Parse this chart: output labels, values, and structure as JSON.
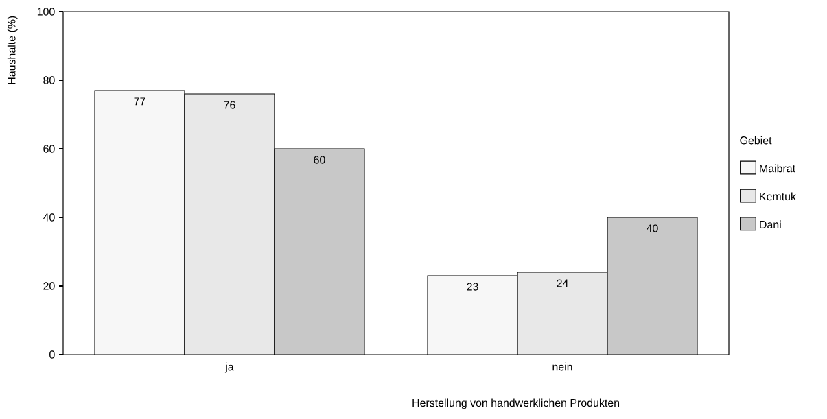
{
  "chart_data": {
    "type": "bar",
    "xlabel": "Herstellung von handwerklichen Produkten",
    "ylabel": "Haushalte (%)",
    "legend_title": "Gebiet",
    "categories": [
      "ja",
      "nein"
    ],
    "series": [
      {
        "name": "Maibrat",
        "color": "#f7f7f7",
        "values": [
          77,
          23
        ]
      },
      {
        "name": "Kemtuk",
        "color": "#e8e8e8",
        "values": [
          76,
          24
        ]
      },
      {
        "name": "Dani",
        "color": "#c8c8c8",
        "values": [
          60,
          40
        ]
      }
    ],
    "ylim": [
      0,
      100
    ],
    "yticks": [
      0,
      20,
      40,
      60,
      80,
      100
    ],
    "data_labels": true,
    "legend": "right",
    "grid": false
  }
}
